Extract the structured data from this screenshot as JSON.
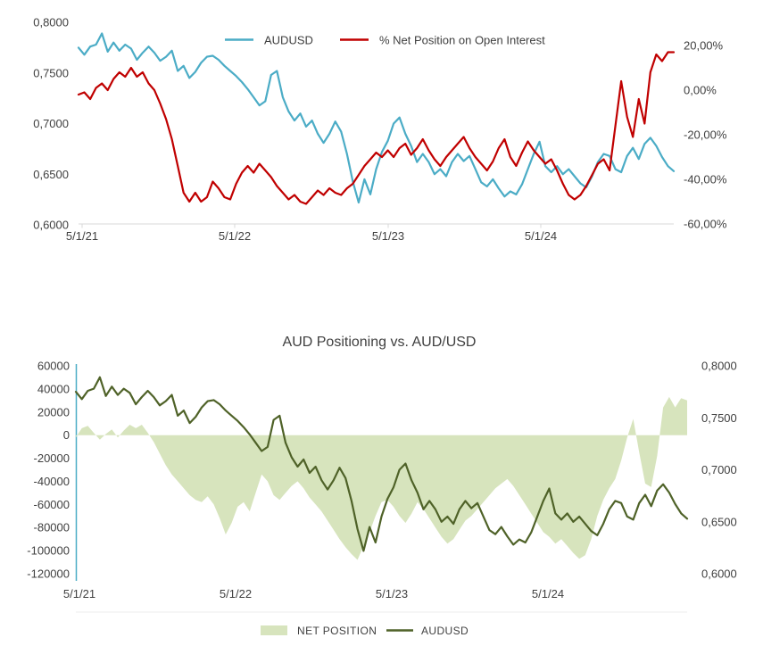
{
  "page": {
    "background": "#ffffff"
  },
  "chart_data": [
    {
      "type": "line",
      "title": "",
      "legend": [
        {
          "label": "AUDUSD",
          "color": "#4BACC6"
        },
        {
          "label": "% Net Position on Open Interest",
          "color": "#C00000"
        }
      ],
      "x_ticks": [
        "5/1/21",
        "5/1/22",
        "5/1/23",
        "5/1/24"
      ],
      "left_axis": {
        "ticks": [
          "0,8000",
          "0,7500",
          "0,7000",
          "0,6500",
          "0,6000"
        ],
        "min": 0.6,
        "max": 0.8
      },
      "right_axis": {
        "ticks": [
          "20,00%",
          "0,00%",
          "-20,00%",
          "-40,00%",
          "-60,00%"
        ],
        "min": -60,
        "max": 20
      },
      "grid": "off",
      "legend_position": "top",
      "series": [
        {
          "name": "AUDUSD",
          "axis": "left",
          "type": "line",
          "color": "#4BACC6",
          "values": [
            0.775,
            0.768,
            0.776,
            0.778,
            0.789,
            0.771,
            0.78,
            0.772,
            0.778,
            0.774,
            0.763,
            0.77,
            0.776,
            0.77,
            0.762,
            0.766,
            0.772,
            0.752,
            0.757,
            0.745,
            0.751,
            0.76,
            0.766,
            0.767,
            0.763,
            0.757,
            0.752,
            0.747,
            0.741,
            0.734,
            0.726,
            0.718,
            0.722,
            0.748,
            0.752,
            0.726,
            0.712,
            0.703,
            0.71,
            0.697,
            0.703,
            0.69,
            0.681,
            0.69,
            0.702,
            0.692,
            0.67,
            0.643,
            0.622,
            0.645,
            0.63,
            0.655,
            0.672,
            0.683,
            0.7,
            0.706,
            0.69,
            0.678,
            0.662,
            0.67,
            0.662,
            0.65,
            0.655,
            0.648,
            0.662,
            0.67,
            0.663,
            0.668,
            0.655,
            0.642,
            0.638,
            0.645,
            0.636,
            0.628,
            0.633,
            0.63,
            0.64,
            0.655,
            0.67,
            0.682,
            0.658,
            0.652,
            0.658,
            0.65,
            0.655,
            0.648,
            0.641,
            0.637,
            0.648,
            0.662,
            0.67,
            0.668,
            0.655,
            0.652,
            0.668,
            0.676,
            0.665,
            0.68,
            0.686,
            0.678,
            0.667,
            0.658,
            0.653
          ]
        },
        {
          "name": "% Net Position on Open Interest",
          "axis": "right",
          "type": "line",
          "color": "#C00000",
          "values": [
            -2,
            -1,
            -4,
            1,
            3,
            0,
            5,
            8,
            6,
            10,
            6,
            8,
            3,
            0,
            -6,
            -13,
            -22,
            -34,
            -46,
            -50,
            -46,
            -50,
            -48,
            -41,
            -44,
            -48,
            -49,
            -42,
            -37,
            -34,
            -37,
            -33,
            -36,
            -39,
            -43,
            -46,
            -49,
            -47,
            -50,
            -51,
            -48,
            -45,
            -47,
            -44,
            -46,
            -47,
            -44,
            -42,
            -38,
            -34,
            -31,
            -28,
            -30,
            -27,
            -30,
            -26,
            -24,
            -29,
            -26,
            -22,
            -27,
            -31,
            -34,
            -30,
            -27,
            -24,
            -21,
            -26,
            -30,
            -33,
            -36,
            -32,
            -26,
            -22,
            -30,
            -34,
            -28,
            -23,
            -27,
            -30,
            -33,
            -31,
            -36,
            -42,
            -47,
            -49,
            -47,
            -43,
            -38,
            -33,
            -31,
            -36,
            -16,
            4,
            -12,
            -21,
            -4,
            -15,
            8,
            16,
            13,
            17,
            17
          ]
        }
      ]
    },
    {
      "type": "area+line",
      "title": "AUD Positioning vs. AUD/USD",
      "legend": [
        {
          "label": "NET POSITION",
          "color": "#D7E4BD"
        },
        {
          "label": "AUDUSD",
          "color": "#4F6228"
        }
      ],
      "x_ticks": [
        "5/1/21",
        "5/1/22",
        "5/1/23",
        "5/1/24"
      ],
      "left_axis": {
        "ticks": [
          "60000",
          "40000",
          "20000",
          "0",
          "-20000",
          "-40000",
          "-60000",
          "-80000",
          "-100000",
          "-120000"
        ],
        "min": -120000,
        "max": 60000
      },
      "right_axis": {
        "ticks": [
          "0,8000",
          "0,7500",
          "0,7000",
          "0,6500",
          "0,6000"
        ],
        "min": 0.6,
        "max": 0.8
      },
      "grid": "off",
      "legend_position": "bottom",
      "series": [
        {
          "name": "NET POSITION",
          "axis": "left",
          "type": "area",
          "color": "#D7E4BD",
          "values": [
            -2000,
            6000,
            8000,
            2000,
            -4000,
            1000,
            5000,
            -2000,
            4000,
            9000,
            6000,
            9000,
            2000,
            -6000,
            -16000,
            -26000,
            -34000,
            -40000,
            -46000,
            -52000,
            -56000,
            -58000,
            -53000,
            -60000,
            -72000,
            -86000,
            -76000,
            -62000,
            -58000,
            -66000,
            -50000,
            -34000,
            -40000,
            -52000,
            -56000,
            -50000,
            -44000,
            -40000,
            -46000,
            -54000,
            -60000,
            -66000,
            -74000,
            -82000,
            -90000,
            -97000,
            -103000,
            -108000,
            -96000,
            -84000,
            -70000,
            -58000,
            -56000,
            -62000,
            -70000,
            -76000,
            -68000,
            -58000,
            -64000,
            -72000,
            -80000,
            -88000,
            -94000,
            -90000,
            -82000,
            -74000,
            -70000,
            -64000,
            -58000,
            -52000,
            -46000,
            -42000,
            -38000,
            -44000,
            -52000,
            -60000,
            -68000,
            -76000,
            -84000,
            -88000,
            -94000,
            -90000,
            -96000,
            -102000,
            -107000,
            -104000,
            -90000,
            -70000,
            -56000,
            -46000,
            -38000,
            -22000,
            -2000,
            14000,
            -15000,
            -42000,
            -45000,
            -18000,
            24000,
            33000,
            24000,
            32000,
            30000
          ]
        },
        {
          "name": "AUDUSD",
          "axis": "right",
          "type": "line",
          "color": "#4F6228",
          "values": [
            0.775,
            0.768,
            0.776,
            0.778,
            0.789,
            0.771,
            0.78,
            0.772,
            0.778,
            0.774,
            0.763,
            0.77,
            0.776,
            0.77,
            0.762,
            0.766,
            0.772,
            0.752,
            0.757,
            0.745,
            0.751,
            0.76,
            0.766,
            0.767,
            0.763,
            0.757,
            0.752,
            0.747,
            0.741,
            0.734,
            0.726,
            0.718,
            0.722,
            0.748,
            0.752,
            0.726,
            0.712,
            0.703,
            0.71,
            0.697,
            0.703,
            0.69,
            0.681,
            0.69,
            0.702,
            0.692,
            0.67,
            0.643,
            0.622,
            0.645,
            0.63,
            0.655,
            0.672,
            0.683,
            0.7,
            0.706,
            0.69,
            0.678,
            0.662,
            0.67,
            0.662,
            0.65,
            0.655,
            0.648,
            0.662,
            0.67,
            0.663,
            0.668,
            0.655,
            0.642,
            0.638,
            0.645,
            0.636,
            0.628,
            0.633,
            0.63,
            0.64,
            0.655,
            0.67,
            0.682,
            0.658,
            0.652,
            0.658,
            0.65,
            0.655,
            0.648,
            0.641,
            0.637,
            0.648,
            0.662,
            0.67,
            0.668,
            0.655,
            0.652,
            0.668,
            0.676,
            0.665,
            0.68,
            0.686,
            0.678,
            0.667,
            0.658,
            0.653
          ]
        }
      ]
    }
  ],
  "colors": {
    "axis_line": "#d9d9d9",
    "faint_line": "#ececec",
    "label_text": "#404040",
    "vertical_axis": "#4BACC6"
  }
}
